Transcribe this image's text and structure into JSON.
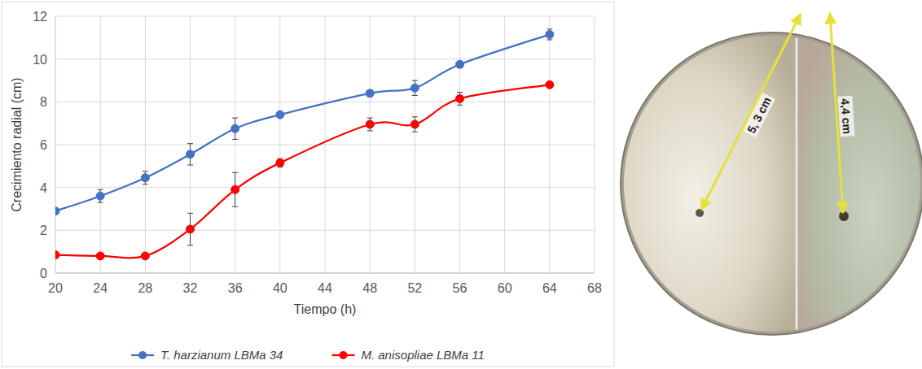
{
  "chart_data": {
    "type": "line",
    "x_label": "Tiempo (h)",
    "y_label": "Crecimiento radial (cm)",
    "x": [
      20,
      24,
      28,
      32,
      36,
      40,
      48,
      52,
      56,
      64
    ],
    "series": [
      {
        "name": "T. harzianum LBMa 34",
        "color": "#4472c4",
        "marker": "circle",
        "line_style": "smooth",
        "values": [
          2.9,
          3.6,
          4.45,
          5.55,
          6.75,
          7.4,
          8.4,
          8.65,
          9.75,
          11.15
        ],
        "errors": [
          0.1,
          0.3,
          0.3,
          0.5,
          0.5,
          0.1,
          0.15,
          0.35,
          0.15,
          0.25
        ]
      },
      {
        "name": "M. anisopliae LBMa 11",
        "color": "#ff0000",
        "marker": "circle",
        "line_style": "smooth",
        "values": [
          0.85,
          0.8,
          0.8,
          2.05,
          3.9,
          5.15,
          6.95,
          6.95,
          8.15,
          8.8
        ],
        "errors": [
          0.05,
          0.05,
          0.05,
          0.75,
          0.8,
          0.2,
          0.3,
          0.35,
          0.3,
          0.05
        ]
      }
    ],
    "xlim": [
      20,
      68
    ],
    "xticks": [
      20,
      24,
      28,
      32,
      36,
      40,
      44,
      48,
      52,
      56,
      60,
      64,
      68
    ],
    "ylim": [
      0,
      12
    ],
    "yticks": [
      0,
      2,
      4,
      6,
      8,
      10,
      12
    ],
    "grid": true,
    "legend": "bottom"
  },
  "photo": {
    "annotations": [
      "5, 3 cm",
      "4,4 cm"
    ]
  }
}
